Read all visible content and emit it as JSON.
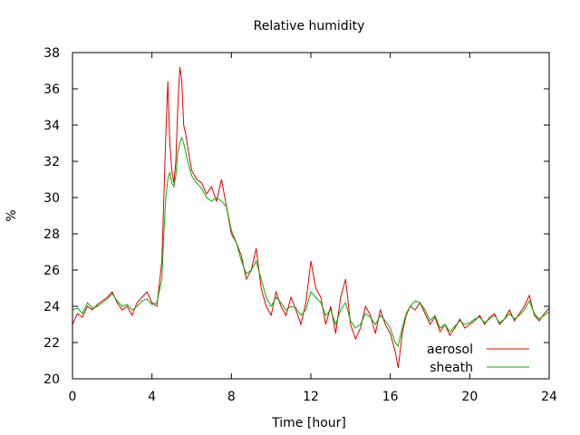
{
  "chart_data": {
    "type": "line",
    "title": "Relative humidity",
    "xlabel": "Time [hour]",
    "ylabel": "%",
    "xlim": [
      0,
      24
    ],
    "ylim": [
      20,
      38
    ],
    "xticks": [
      0,
      4,
      8,
      12,
      16,
      20,
      24
    ],
    "yticks": [
      20,
      22,
      24,
      26,
      28,
      30,
      32,
      34,
      36,
      38
    ],
    "grid": false,
    "legend_position": "bottom-right",
    "series": [
      {
        "name": "aerosol",
        "color": "#e00000",
        "x": [
          0,
          0.25,
          0.5,
          0.75,
          1,
          1.25,
          1.5,
          1.75,
          2,
          2.25,
          2.5,
          2.75,
          3,
          3.25,
          3.5,
          3.75,
          4,
          4.25,
          4.5,
          4.6,
          4.7,
          4.8,
          4.9,
          5,
          5.1,
          5.2,
          5.3,
          5.4,
          5.5,
          5.6,
          5.7,
          5.8,
          6,
          6.25,
          6.5,
          6.75,
          7,
          7.25,
          7.5,
          7.75,
          8,
          8.25,
          8.5,
          8.75,
          9,
          9.25,
          9.5,
          9.75,
          10,
          10.25,
          10.5,
          10.75,
          11,
          11.25,
          11.5,
          11.75,
          12,
          12.25,
          12.5,
          12.75,
          13,
          13.25,
          13.5,
          13.75,
          14,
          14.25,
          14.5,
          14.75,
          15,
          15.25,
          15.5,
          15.75,
          16,
          16.25,
          16.4,
          16.6,
          16.8,
          17,
          17.25,
          17.5,
          17.75,
          18,
          18.25,
          18.5,
          18.75,
          19,
          19.25,
          19.5,
          19.75,
          20,
          20.25,
          20.5,
          20.75,
          21,
          21.25,
          21.5,
          21.75,
          22,
          22.25,
          22.5,
          22.75,
          23,
          23.25,
          23.5,
          23.75,
          24
        ],
        "y": [
          23.0,
          23.6,
          23.4,
          24.0,
          23.8,
          24.1,
          24.3,
          24.5,
          24.8,
          24.2,
          23.8,
          24.0,
          23.5,
          24.2,
          24.5,
          24.8,
          24.2,
          24.0,
          26.5,
          30.0,
          33.5,
          36.4,
          33.0,
          31.5,
          30.8,
          32.0,
          35.0,
          37.2,
          36.5,
          34.0,
          33.5,
          32.8,
          31.5,
          31.0,
          30.8,
          30.2,
          30.6,
          29.8,
          31.0,
          29.5,
          28.0,
          27.5,
          26.8,
          25.5,
          26.0,
          27.2,
          25.0,
          24.0,
          23.5,
          24.8,
          24.0,
          23.5,
          24.5,
          23.8,
          23.0,
          24.2,
          26.5,
          25.0,
          24.5,
          23.0,
          24.0,
          22.5,
          24.5,
          25.5,
          23.0,
          22.2,
          22.8,
          24.0,
          23.5,
          22.5,
          23.8,
          23.0,
          22.5,
          21.5,
          20.6,
          22.5,
          23.5,
          24.0,
          23.8,
          24.2,
          23.6,
          23.0,
          23.4,
          22.6,
          23.0,
          22.4,
          22.8,
          23.3,
          22.8,
          23.0,
          23.2,
          23.5,
          23.0,
          23.4,
          23.6,
          23.0,
          23.3,
          23.8,
          23.2,
          23.6,
          24.0,
          24.6,
          23.5,
          23.2,
          23.6,
          23.9
        ]
      },
      {
        "name": "sheath",
        "color": "#00b000",
        "x": [
          0,
          0.25,
          0.5,
          0.75,
          1,
          1.25,
          1.5,
          1.75,
          2,
          2.25,
          2.5,
          2.75,
          3,
          3.25,
          3.5,
          3.75,
          4,
          4.25,
          4.5,
          4.6,
          4.7,
          4.8,
          4.9,
          5,
          5.1,
          5.2,
          5.3,
          5.4,
          5.5,
          5.6,
          5.7,
          5.8,
          6,
          6.25,
          6.5,
          6.75,
          7,
          7.25,
          7.5,
          7.75,
          8,
          8.25,
          8.5,
          8.75,
          9,
          9.25,
          9.5,
          9.75,
          10,
          10.25,
          10.5,
          10.75,
          11,
          11.25,
          11.5,
          11.75,
          12,
          12.25,
          12.5,
          12.75,
          13,
          13.25,
          13.5,
          13.75,
          14,
          14.25,
          14.5,
          14.75,
          15,
          15.25,
          15.5,
          15.75,
          16,
          16.25,
          16.4,
          16.6,
          16.8,
          17,
          17.25,
          17.5,
          17.75,
          18,
          18.25,
          18.5,
          18.75,
          19,
          19.25,
          19.5,
          19.75,
          20,
          20.25,
          20.5,
          20.75,
          21,
          21.25,
          21.5,
          21.75,
          22,
          22.25,
          22.5,
          22.75,
          23,
          23.25,
          23.5,
          23.75,
          24
        ],
        "y": [
          23.8,
          23.9,
          23.6,
          24.2,
          23.9,
          24.0,
          24.2,
          24.4,
          24.7,
          24.3,
          24.0,
          24.1,
          23.8,
          24.0,
          24.3,
          24.4,
          24.1,
          24.2,
          25.5,
          28.0,
          30.0,
          31.0,
          31.4,
          30.8,
          30.6,
          31.2,
          32.5,
          33.0,
          33.3,
          33.0,
          32.5,
          32.0,
          31.2,
          30.8,
          30.5,
          30.0,
          29.8,
          30.0,
          29.8,
          29.5,
          28.2,
          27.5,
          26.5,
          25.8,
          26.0,
          26.5,
          25.5,
          24.5,
          24.0,
          24.5,
          24.2,
          23.8,
          24.0,
          23.9,
          23.5,
          23.8,
          24.8,
          24.5,
          24.2,
          23.5,
          23.8,
          23.0,
          23.8,
          24.2,
          23.2,
          22.8,
          23.0,
          23.6,
          23.4,
          23.0,
          23.5,
          23.2,
          22.8,
          22.0,
          21.8,
          22.8,
          23.6,
          24.0,
          24.3,
          24.2,
          23.8,
          23.2,
          23.5,
          22.8,
          23.0,
          22.6,
          22.9,
          23.2,
          23.0,
          23.1,
          23.3,
          23.4,
          23.1,
          23.3,
          23.5,
          23.1,
          23.3,
          23.6,
          23.3,
          23.5,
          23.8,
          24.3,
          23.6,
          23.3,
          23.5,
          23.7
        ]
      }
    ]
  }
}
